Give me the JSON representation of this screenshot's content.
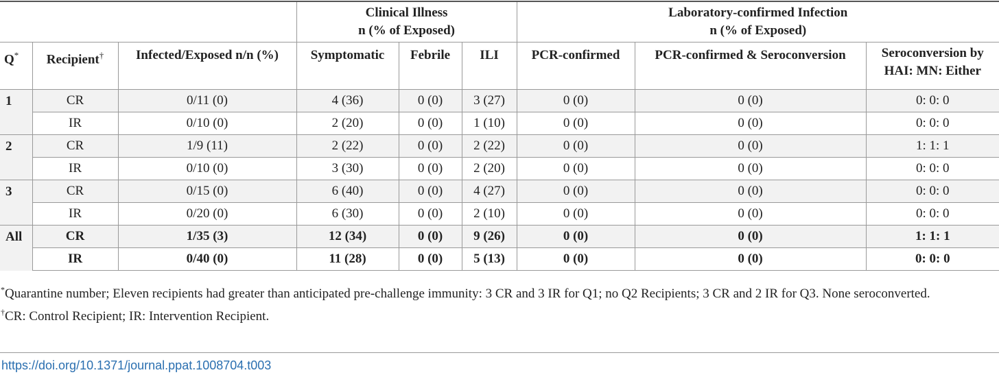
{
  "table": {
    "group_headers": {
      "clinical": [
        "Clinical Illness",
        "n (% of Exposed)"
      ],
      "lab": [
        "Laboratory-confirmed Infection",
        "n (% of Exposed)"
      ]
    },
    "columns": {
      "q": "Q",
      "q_mark": "*",
      "recipient": "Recipient",
      "recipient_mark": "†",
      "infected": "Infected/Exposed n/n (%)",
      "symptomatic": "Symptomatic",
      "febrile": "Febrile",
      "ili": "ILI",
      "pcr": "PCR-confirmed",
      "pcr_sero": "PCR-confirmed & Seroconversion",
      "sero": [
        "Seroconversion by",
        "HAI: MN: Either"
      ]
    },
    "groups": [
      {
        "q": "1",
        "rows": [
          {
            "recipient": "CR",
            "infected": "0/11 (0)",
            "symptomatic": "4 (36)",
            "febrile": "0 (0)",
            "ili": "3 (27)",
            "pcr": "0 (0)",
            "pcr_sero": "0 (0)",
            "sero": "0: 0: 0"
          },
          {
            "recipient": "IR",
            "infected": "0/10 (0)",
            "symptomatic": "2 (20)",
            "febrile": "0 (0)",
            "ili": "1 (10)",
            "pcr": "0 (0)",
            "pcr_sero": "0 (0)",
            "sero": "0: 0: 0"
          }
        ]
      },
      {
        "q": "2",
        "rows": [
          {
            "recipient": "CR",
            "infected": "1/9 (11)",
            "symptomatic": "2 (22)",
            "febrile": "0 (0)",
            "ili": "2 (22)",
            "pcr": "0 (0)",
            "pcr_sero": "0 (0)",
            "sero": "1: 1: 1"
          },
          {
            "recipient": "IR",
            "infected": "0/10 (0)",
            "symptomatic": "3 (30)",
            "febrile": "0 (0)",
            "ili": "2 (20)",
            "pcr": "0 (0)",
            "pcr_sero": "0 (0)",
            "sero": "0: 0: 0"
          }
        ]
      },
      {
        "q": "3",
        "rows": [
          {
            "recipient": "CR",
            "infected": "0/15 (0)",
            "symptomatic": "6 (40)",
            "febrile": "0 (0)",
            "ili": "4 (27)",
            "pcr": "0 (0)",
            "pcr_sero": "0 (0)",
            "sero": "0: 0: 0"
          },
          {
            "recipient": "IR",
            "infected": "0/20 (0)",
            "symptomatic": "6 (30)",
            "febrile": "0 (0)",
            "ili": "2 (10)",
            "pcr": "0 (0)",
            "pcr_sero": "0 (0)",
            "sero": "0: 0: 0"
          }
        ]
      },
      {
        "q": "All",
        "rows": [
          {
            "recipient": "CR",
            "infected": "1/35 (3)",
            "symptomatic": "12 (34)",
            "febrile": "0 (0)",
            "ili": "9 (26)",
            "pcr": "0 (0)",
            "pcr_sero": "0 (0)",
            "sero": "1: 1: 1"
          },
          {
            "recipient": "IR",
            "infected": "0/40 (0)",
            "symptomatic": "11 (28)",
            "febrile": "0 (0)",
            "ili": "5 (13)",
            "pcr": "0 (0)",
            "pcr_sero": "0 (0)",
            "sero": "0: 0: 0"
          }
        ]
      }
    ]
  },
  "footnotes": {
    "note1_mark": "*",
    "note1": "Quarantine number; Eleven recipients had greater than anticipated pre-challenge immunity: 3 CR and 3 IR for Q1; no Q2 Recipients; 3 CR and 2 IR for Q3. None seroconverted.",
    "note2_mark": "†",
    "note2": "CR: Control Recipient; IR: Intervention Recipient."
  },
  "doi": "https://doi.org/10.1371/journal.ppat.1008704.t003",
  "colors": {
    "link": "#2a6fb0",
    "shade": "#f2f2f2",
    "rule": "#999999"
  }
}
